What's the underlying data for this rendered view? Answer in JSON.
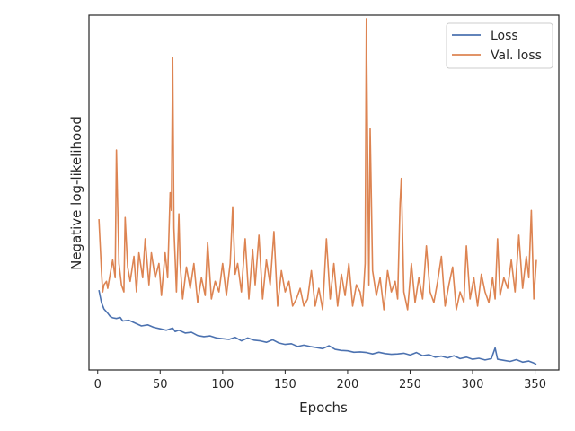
{
  "chart_data": {
    "type": "line",
    "title": "",
    "xlabel": "Epochs",
    "ylabel": "Negative log-likelihood",
    "xlim": [
      -7,
      369
    ],
    "ylim": [
      0,
      1
    ],
    "xticks": [
      0,
      50,
      100,
      150,
      200,
      250,
      300,
      350
    ],
    "y_tick_labels_visible": false,
    "grid": false,
    "legend_position": "top-right",
    "series": [
      {
        "name": "Loss",
        "color": "#4c72b0",
        "x": [
          1,
          3,
          5,
          8,
          10,
          12,
          15,
          18,
          20,
          25,
          30,
          35,
          40,
          45,
          50,
          55,
          60,
          62,
          65,
          70,
          75,
          80,
          85,
          90,
          95,
          100,
          105,
          110,
          115,
          120,
          125,
          130,
          135,
          140,
          145,
          150,
          155,
          160,
          165,
          170,
          175,
          180,
          185,
          190,
          195,
          200,
          205,
          210,
          215,
          220,
          225,
          230,
          235,
          240,
          245,
          250,
          255,
          260,
          265,
          270,
          275,
          280,
          285,
          290,
          295,
          300,
          305,
          310,
          315,
          318,
          320,
          325,
          330,
          335,
          340,
          345,
          348,
          351
        ],
        "y": [
          0.225,
          0.19,
          0.172,
          0.16,
          0.151,
          0.147,
          0.145,
          0.148,
          0.138,
          0.14,
          0.132,
          0.124,
          0.127,
          0.12,
          0.116,
          0.112,
          0.118,
          0.108,
          0.112,
          0.104,
          0.106,
          0.097,
          0.094,
          0.096,
          0.09,
          0.088,
          0.086,
          0.092,
          0.082,
          0.09,
          0.084,
          0.082,
          0.078,
          0.085,
          0.076,
          0.072,
          0.074,
          0.066,
          0.07,
          0.066,
          0.063,
          0.06,
          0.068,
          0.058,
          0.055,
          0.054,
          0.05,
          0.051,
          0.049,
          0.045,
          0.05,
          0.046,
          0.044,
          0.045,
          0.047,
          0.042,
          0.049,
          0.04,
          0.043,
          0.036,
          0.039,
          0.034,
          0.04,
          0.032,
          0.036,
          0.03,
          0.033,
          0.028,
          0.032,
          0.062,
          0.03,
          0.027,
          0.024,
          0.029,
          0.022,
          0.025,
          0.021,
          0.016
        ]
      },
      {
        "name": "Val. loss",
        "color": "#dd8452",
        "x": [
          1,
          3,
          4,
          5,
          7,
          8,
          10,
          12,
          14,
          15,
          17,
          19,
          21,
          22,
          24,
          26,
          29,
          31,
          33,
          36,
          38,
          41,
          43,
          46,
          49,
          51,
          54,
          56,
          58,
          59,
          60,
          61,
          63,
          65,
          66,
          68,
          71,
          74,
          77,
          80,
          83,
          86,
          88,
          91,
          94,
          97,
          100,
          103,
          106,
          108,
          110,
          112,
          115,
          118,
          121,
          124,
          126,
          129,
          132,
          135,
          138,
          141,
          144,
          147,
          150,
          153,
          156,
          159,
          162,
          165,
          168,
          171,
          174,
          177,
          180,
          183,
          186,
          189,
          192,
          195,
          198,
          201,
          204,
          207,
          210,
          212,
          214,
          215,
          216,
          217,
          218,
          220,
          223,
          226,
          229,
          232,
          235,
          238,
          240,
          242,
          243,
          245,
          248,
          251,
          254,
          257,
          260,
          263,
          266,
          269,
          272,
          275,
          278,
          281,
          284,
          287,
          290,
          293,
          295,
          298,
          301,
          304,
          307,
          310,
          313,
          316,
          318,
          320,
          322,
          325,
          328,
          331,
          334,
          337,
          340,
          343,
          345,
          347,
          349,
          351
        ],
        "y": [
          0.425,
          0.28,
          0.22,
          0.24,
          0.25,
          0.23,
          0.27,
          0.31,
          0.26,
          0.62,
          0.3,
          0.24,
          0.22,
          0.43,
          0.29,
          0.25,
          0.32,
          0.22,
          0.33,
          0.26,
          0.37,
          0.24,
          0.33,
          0.26,
          0.3,
          0.21,
          0.33,
          0.26,
          0.5,
          0.45,
          0.88,
          0.4,
          0.22,
          0.44,
          0.3,
          0.2,
          0.29,
          0.23,
          0.3,
          0.19,
          0.26,
          0.21,
          0.36,
          0.2,
          0.25,
          0.22,
          0.3,
          0.21,
          0.3,
          0.46,
          0.27,
          0.3,
          0.22,
          0.37,
          0.2,
          0.34,
          0.24,
          0.38,
          0.2,
          0.31,
          0.24,
          0.39,
          0.18,
          0.28,
          0.22,
          0.25,
          0.18,
          0.2,
          0.23,
          0.18,
          0.2,
          0.28,
          0.18,
          0.23,
          0.17,
          0.37,
          0.2,
          0.3,
          0.18,
          0.27,
          0.21,
          0.3,
          0.18,
          0.24,
          0.22,
          0.18,
          0.3,
          0.99,
          0.6,
          0.24,
          0.68,
          0.28,
          0.21,
          0.26,
          0.17,
          0.28,
          0.22,
          0.25,
          0.2,
          0.47,
          0.54,
          0.22,
          0.17,
          0.3,
          0.19,
          0.26,
          0.2,
          0.35,
          0.22,
          0.19,
          0.25,
          0.32,
          0.18,
          0.24,
          0.29,
          0.17,
          0.22,
          0.19,
          0.35,
          0.2,
          0.26,
          0.18,
          0.27,
          0.22,
          0.19,
          0.26,
          0.2,
          0.37,
          0.21,
          0.26,
          0.23,
          0.31,
          0.22,
          0.38,
          0.23,
          0.32,
          0.26,
          0.45,
          0.2,
          0.31
        ]
      }
    ]
  }
}
